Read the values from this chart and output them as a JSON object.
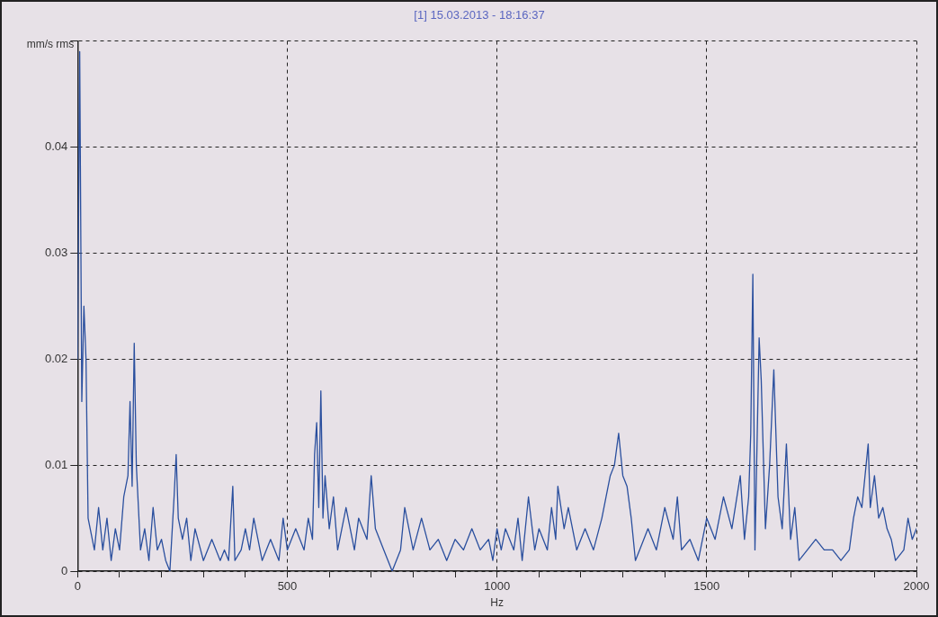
{
  "chart_data": {
    "type": "line",
    "title": "[1] 15.03.2013 - 18:16:37",
    "xlabel": "Hz",
    "ylabel": "mm/s rms",
    "grid": true,
    "marker": "none",
    "line_style": "solid",
    "xlim": [
      0,
      2000
    ],
    "ylim": [
      0,
      0.05
    ],
    "xticks": [
      0,
      {
        "value": 100,
        "label": null
      },
      {
        "value": 200,
        "label": null
      },
      {
        "value": 300,
        "label": null
      },
      {
        "value": 400,
        "label": null
      },
      500,
      {
        "value": 600,
        "label": null
      },
      {
        "value": 700,
        "label": null
      },
      {
        "value": 800,
        "label": null
      },
      {
        "value": 900,
        "label": null
      },
      1000,
      {
        "value": 1100,
        "label": null
      },
      {
        "value": 1200,
        "label": null
      },
      {
        "value": 1300,
        "label": null
      },
      {
        "value": 1400,
        "label": null
      },
      1500,
      {
        "value": 1600,
        "label": null
      },
      {
        "value": 1700,
        "label": null
      },
      {
        "value": 1800,
        "label": null
      },
      {
        "value": 1900,
        "label": null
      },
      2000
    ],
    "yticks": [
      0,
      0.01,
      0.02,
      0.03,
      0.04,
      {
        "value": 0.05,
        "label": null
      }
    ],
    "series": [
      {
        "color": "#2a4f9e",
        "x": [
          0,
          5,
          10,
          15,
          20,
          25,
          30,
          40,
          50,
          60,
          70,
          80,
          90,
          100,
          110,
          120,
          125,
          130,
          135,
          140,
          145,
          150,
          160,
          170,
          180,
          190,
          200,
          210,
          220,
          230,
          235,
          240,
          250,
          260,
          270,
          280,
          300,
          320,
          340,
          350,
          360,
          370,
          375,
          390,
          400,
          410,
          420,
          440,
          460,
          480,
          490,
          500,
          520,
          540,
          550,
          560,
          565,
          570,
          575,
          580,
          585,
          590,
          600,
          610,
          620,
          640,
          660,
          670,
          690,
          700,
          710,
          730,
          750,
          770,
          780,
          800,
          820,
          840,
          860,
          880,
          900,
          920,
          940,
          960,
          980,
          990,
          1000,
          1010,
          1020,
          1040,
          1050,
          1060,
          1075,
          1090,
          1100,
          1120,
          1130,
          1140,
          1145,
          1160,
          1170,
          1190,
          1210,
          1230,
          1250,
          1260,
          1270,
          1280,
          1290,
          1300,
          1310,
          1320,
          1330,
          1340,
          1360,
          1380,
          1400,
          1420,
          1430,
          1440,
          1460,
          1480,
          1500,
          1520,
          1540,
          1560,
          1580,
          1590,
          1600,
          1605,
          1610,
          1615,
          1625,
          1630,
          1640,
          1650,
          1660,
          1670,
          1680,
          1690,
          1700,
          1710,
          1720,
          1740,
          1760,
          1780,
          1800,
          1820,
          1840,
          1850,
          1860,
          1870,
          1880,
          1885,
          1890,
          1900,
          1910,
          1920,
          1930,
          1940,
          1950,
          1970,
          1980,
          1990,
          2000
        ],
        "values": [
          0.02,
          0.049,
          0.016,
          0.025,
          0.02,
          0.005,
          0.004,
          0.002,
          0.006,
          0.002,
          0.005,
          0.001,
          0.004,
          0.002,
          0.007,
          0.009,
          0.016,
          0.008,
          0.0215,
          0.01,
          0.006,
          0.002,
          0.004,
          0.001,
          0.006,
          0.002,
          0.003,
          0.001,
          0.0,
          0.007,
          0.011,
          0.005,
          0.003,
          0.005,
          0.001,
          0.004,
          0.001,
          0.003,
          0.001,
          0.002,
          0.001,
          0.008,
          0.001,
          0.002,
          0.004,
          0.002,
          0.005,
          0.001,
          0.003,
          0.001,
          0.005,
          0.002,
          0.004,
          0.002,
          0.005,
          0.003,
          0.011,
          0.014,
          0.006,
          0.017,
          0.005,
          0.009,
          0.004,
          0.007,
          0.002,
          0.006,
          0.002,
          0.005,
          0.003,
          0.009,
          0.004,
          0.002,
          0.0,
          0.002,
          0.006,
          0.002,
          0.005,
          0.002,
          0.003,
          0.001,
          0.003,
          0.002,
          0.004,
          0.002,
          0.003,
          0.001,
          0.004,
          0.002,
          0.004,
          0.002,
          0.005,
          0.001,
          0.007,
          0.002,
          0.004,
          0.002,
          0.006,
          0.003,
          0.008,
          0.004,
          0.006,
          0.002,
          0.004,
          0.002,
          0.005,
          0.007,
          0.009,
          0.01,
          0.013,
          0.009,
          0.008,
          0.005,
          0.001,
          0.002,
          0.004,
          0.002,
          0.006,
          0.003,
          0.007,
          0.002,
          0.003,
          0.001,
          0.005,
          0.003,
          0.007,
          0.004,
          0.009,
          0.003,
          0.007,
          0.013,
          0.028,
          0.002,
          0.022,
          0.018,
          0.004,
          0.01,
          0.019,
          0.007,
          0.004,
          0.012,
          0.003,
          0.006,
          0.001,
          0.002,
          0.003,
          0.002,
          0.002,
          0.001,
          0.002,
          0.005,
          0.007,
          0.006,
          0.01,
          0.012,
          0.006,
          0.009,
          0.005,
          0.006,
          0.004,
          0.003,
          0.001,
          0.002,
          0.005,
          0.003,
          0.004
        ]
      }
    ]
  }
}
